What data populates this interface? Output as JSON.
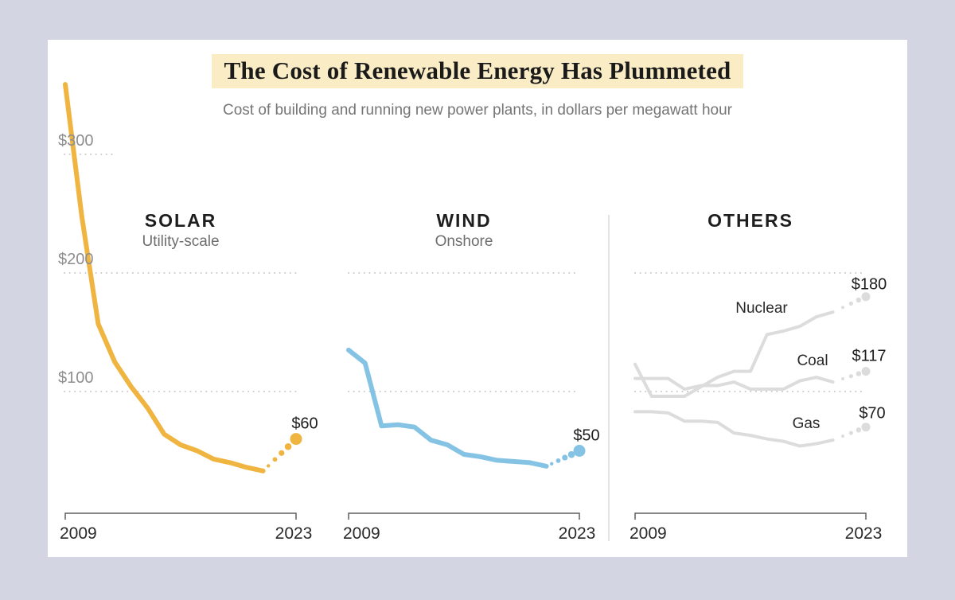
{
  "title": "The Cost of Renewable Energy Has Plummeted",
  "subtitle": "Cost of building and running new power plants, in dollars per megawatt hour",
  "colors": {
    "background": "#d3d6e2",
    "card": "#ffffff",
    "title_highlight": "#faecc5",
    "solar": "#f0b440",
    "wind": "#85c3e4",
    "others_gray": "#dcdcdc",
    "gridline": "#c9c9c9",
    "axis_bracket": "#5f5f5f",
    "divider": "#dcdcdc"
  },
  "y_axis": {
    "ticks": [
      {
        "label": "$300",
        "value": 300,
        "stub": true
      },
      {
        "label": "$200",
        "value": 200,
        "stub": false
      },
      {
        "label": "$100",
        "value": 100,
        "stub": false
      }
    ]
  },
  "chart_data": {
    "type": "line",
    "title": "The Cost of Renewable Energy Has Plummeted",
    "subtitle": "Cost of building and running new power plants, in dollars per megawatt hour",
    "unit": "dollars per megawatt hour",
    "x_range": [
      2009,
      2023
    ],
    "x_tick_labels": [
      "2009",
      "2023"
    ],
    "y_gridlines": [
      100,
      200,
      300
    ],
    "ylim": [
      0,
      380
    ],
    "solid_years": [
      2009,
      2010,
      2011,
      2012,
      2013,
      2014,
      2015,
      2016,
      2017,
      2018,
      2019,
      2020,
      2021
    ],
    "projected_year": 2023,
    "legend_position": "inline",
    "grid": "dotted",
    "panels": [
      {
        "heading": "SOLAR",
        "subheading": "Utility-scale",
        "x_left_label": "2009",
        "x_right_label": "2023",
        "series": [
          {
            "name": "Solar",
            "color_key": "solar",
            "inline_label": "",
            "end_label": "$60",
            "end_value": 60,
            "values": [
              359,
              248,
              157,
              125,
              104,
              86,
              64,
              55,
              50,
              43,
              40,
              36,
              33
            ]
          }
        ]
      },
      {
        "heading": "WIND",
        "subheading": "Onshore",
        "x_left_label": "2009",
        "x_right_label": "2023",
        "series": [
          {
            "name": "Wind",
            "color_key": "wind",
            "inline_label": "",
            "end_label": "$50",
            "end_value": 50,
            "values": [
              135,
              124,
              71,
              72,
              70,
              59,
              55,
              47,
              45,
              42,
              41,
              40,
              37
            ]
          }
        ]
      },
      {
        "heading": "OTHERS",
        "subheading": "",
        "x_left_label": "2009",
        "x_right_label": "2023",
        "series": [
          {
            "name": "Gas",
            "color_key": "others_gray",
            "inline_label": "Gas",
            "end_label": "$70",
            "end_value": 70,
            "values": [
              83,
              83,
              82,
              75,
              75,
              74,
              65,
              63,
              60,
              58,
              54,
              56,
              59
            ]
          },
          {
            "name": "Coal",
            "color_key": "others_gray",
            "inline_label": "Coal",
            "end_label": "$117",
            "end_value": 117,
            "values": [
              111,
              111,
              111,
              102,
              105,
              105,
              108,
              102,
              102,
              102,
              109,
              112,
              108
            ]
          },
          {
            "name": "Nuclear",
            "color_key": "others_gray",
            "inline_label": "Nuclear",
            "end_label": "$180",
            "end_value": 180,
            "values": [
              123,
              96,
              96,
              96,
              104,
              112,
              117,
              117,
              148,
              151,
              155,
              163,
              167
            ]
          }
        ]
      }
    ]
  }
}
